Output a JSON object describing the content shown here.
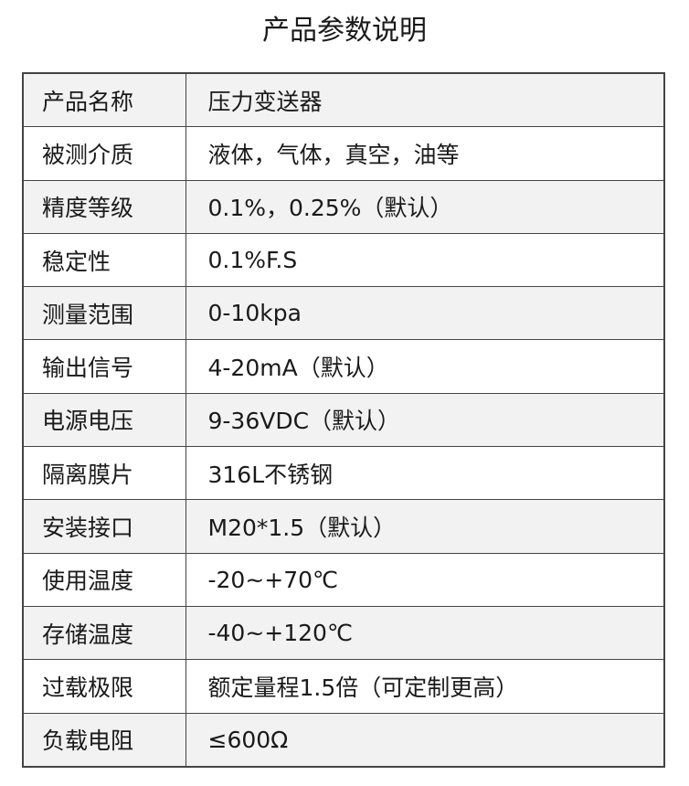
{
  "title": "产品参数说明",
  "rows": [
    {
      "label": "产品名称",
      "value": "压力变送器"
    },
    {
      "label": "被测介质",
      "value": "液体，气体，真空，油等"
    },
    {
      "label": "精度等级",
      "value": "0.1%，0.25%（默认）"
    },
    {
      "label": "稳定性",
      "value": "0.1%F.S"
    },
    {
      "label": "测量范围",
      "value": "0-10kpa"
    },
    {
      "label": "输出信号",
      "value": "4-20mA（默认）"
    },
    {
      "label": "电源电压",
      "value": "9-36VDC（默认）"
    },
    {
      "label": "隔离膜片",
      "value": "316L不锈钢"
    },
    {
      "label": "安装接口",
      "value": "M20*1.5（默认）"
    },
    {
      "label": "使用温度",
      "value": "-20~+70℃"
    },
    {
      "label": "存储温度",
      "value": "-40~+120℃"
    },
    {
      "label": "过载极限",
      "value": "额定量程1.5倍（可定制更高）"
    },
    {
      "label": "负载电阻",
      "value": "≤600Ω"
    }
  ]
}
